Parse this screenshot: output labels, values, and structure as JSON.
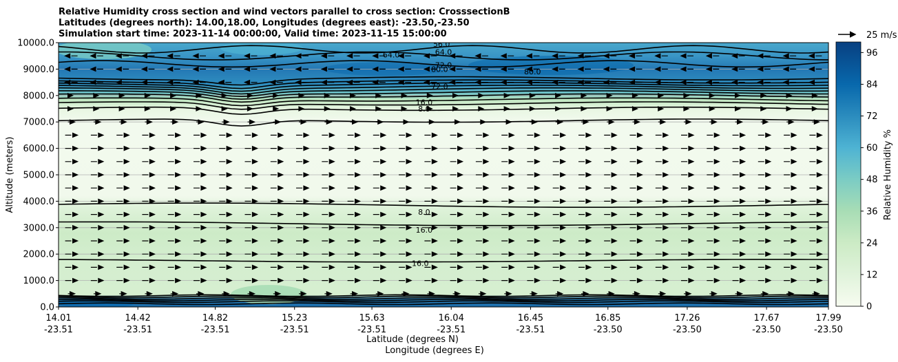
{
  "chart_data": {
    "type": "heatmap",
    "title_lines": [
      "Relative Humidity cross section and wind vectors parallel to cross section: CrosssectionB",
      "Latitudes (degrees north): 14.00,18.00, Longitudes (degrees east): -23.50,-23.50",
      "Simulation start time: 2023-11-14 00:00:00, Valid time: 2023-11-15 15:00:00"
    ],
    "xlabel": "Latitude (degrees N)",
    "xlabel2": "Longitude (degrees E)",
    "ylabel": "Altitude (meters)",
    "x_tick_lat": [
      "14.01",
      "14.42",
      "14.82",
      "15.23",
      "15.63",
      "16.04",
      "16.45",
      "16.85",
      "17.26",
      "17.67",
      "17.99"
    ],
    "x_tick_lon": [
      "-23.51",
      "-23.51",
      "-23.51",
      "-23.51",
      "-23.51",
      "-23.51",
      "-23.51",
      "-23.50",
      "-23.50",
      "-23.50",
      "-23.50"
    ],
    "y_ticks": [
      "0.0",
      "1000.0",
      "2000.0",
      "3000.0",
      "4000.0",
      "5000.0",
      "6000.0",
      "7000.0",
      "8000.0",
      "9000.0",
      "10000.0"
    ],
    "ylim": [
      0,
      10000
    ],
    "grid": "horizontal",
    "colorbar": {
      "label": "Relative Humidity %",
      "ticks": [
        "0",
        "12",
        "24",
        "36",
        "48",
        "60",
        "72",
        "84",
        "96"
      ],
      "range": [
        0,
        100
      ]
    },
    "quiver_key": "25 m/s",
    "contour_labels": [
      {
        "text": "8.0",
        "lat": 15.9,
        "alt": 3600
      },
      {
        "text": "16.0",
        "lat": 15.9,
        "alt": 2920
      },
      {
        "text": "16.0",
        "lat": 15.88,
        "alt": 1660
      },
      {
        "text": "8.0",
        "lat": 15.9,
        "alt": 7500
      },
      {
        "text": "16.0",
        "lat": 15.9,
        "alt": 7750
      },
      {
        "text": "64.0",
        "lat": 15.73,
        "alt": 9550
      },
      {
        "text": "72.0",
        "lat": 16.0,
        "alt": 9150
      },
      {
        "text": "80.0",
        "lat": 16.46,
        "alt": 8900
      },
      {
        "text": "56.0",
        "lat": 15.99,
        "alt": 9950
      },
      {
        "text": "64.0",
        "lat": 16.0,
        "alt": 9650
      },
      {
        "text": "80.0",
        "lat": 15.98,
        "alt": 9000
      },
      {
        "text": "72.0",
        "lat": 15.98,
        "alt": 8350
      }
    ],
    "layers": [
      {
        "alt_range": [
          0,
          400
        ],
        "rh": "80-100"
      },
      {
        "alt_range": [
          400,
          1800
        ],
        "rh": "16-24"
      },
      {
        "alt_range": [
          1800,
          3800
        ],
        "rh": "24-30"
      },
      {
        "alt_range": [
          3800,
          7000
        ],
        "rh": "4-8"
      },
      {
        "alt_range": [
          7000,
          7600
        ],
        "rh": "8-20"
      },
      {
        "alt_range": [
          7600,
          8400
        ],
        "rh": "20-72"
      },
      {
        "alt_range": [
          8400,
          10000
        ],
        "rh": "60-90"
      }
    ],
    "wind": "westerly (arrows point right) 500-7500 m; easterly (arrows point left) above 8500 m"
  }
}
